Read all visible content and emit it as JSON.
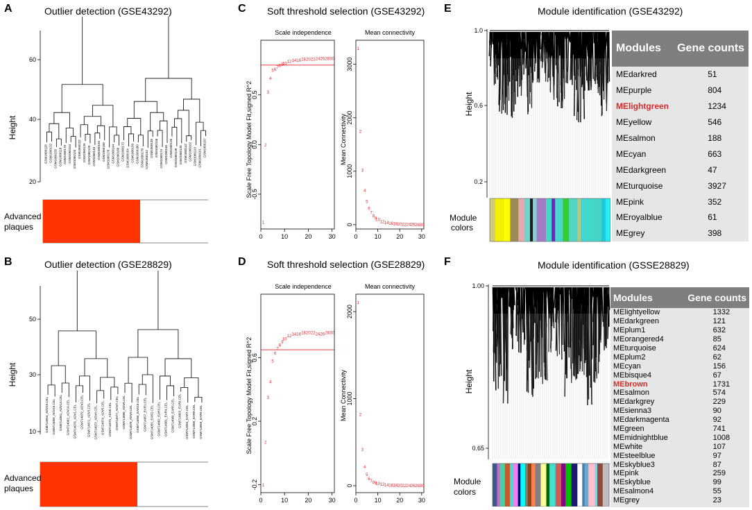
{
  "panels": {
    "A": {
      "letter": "A",
      "title": "Outlier detection (GSE43292)",
      "ylabel": "Height",
      "yticks": [
        "20",
        "40",
        "60"
      ],
      "trait_label_1": "Advanced",
      "trait_label_2": "plaques",
      "leaves": [
        "GSM1060128",
        "GSM1060132",
        "GSM1060158",
        "GSM1060118",
        "GSM1060178",
        "GSM1060154",
        "GSM1060134",
        "GSM1060122",
        "GSM1060126",
        "GSM1060120",
        "GSM1060140",
        "GSM1060156",
        "GSM1060168",
        "GSM1060176",
        "GSM1060144",
        "GSM1060160",
        "GSM1060172",
        "GSM1060164",
        "GSM1060150",
        "GSM1060180",
        "GSM1060170",
        "GSM1060152",
        "GSM1060138",
        "GSM1060146",
        "GSM1060174",
        "GSM1060166",
        "GSM1060136",
        "GSM1060148",
        "GSM1060130",
        "GSM1060142",
        "GSM1060162",
        "GSM1060119",
        "GSM1060161",
        "GSM1060167"
      ]
    },
    "B": {
      "letter": "B",
      "title": "Outlier detection (GSE28829)",
      "ylabel": "Height",
      "yticks": [
        "10",
        "30",
        "50"
      ],
      "trait_label_1": "Advanced",
      "trait_label_2": "plaques",
      "leaves": [
        "GSM714054_ADV15.CEL",
        "GSM714058_ADV16.CEL",
        "GSM714061_ADV13.CEL",
        "GSM714062_ADV14.CEL",
        "GSM714076_ADV1.CEL",
        "GSM714079_ADV2.CEL",
        "GSM714071_ADV3.CEL",
        "GSM714073_ADV4.CEL",
        "GSM714074_ADV5.CEL",
        "GSM714075_ADV6.CEL",
        "GSM714077_ADV7.CEL",
        "GSM714080_ADV8.CEL",
        "GSM714078_ADV9.CEL",
        "GSM714056_EAR10.CEL",
        "GSM714057_EAR1.CEL",
        "GSM714055_EAR2.CEL",
        "GSM714082_EAR3.CEL",
        "GSM714081_EAR4.CEL",
        "GSM714060_EAR5.CEL",
        "GSM714063_EAR6.CEL",
        "GSM714064_EAR7.CEL",
        "GSM714066_EAR8.CEL",
        "GSM714059_EAR9.CEL"
      ]
    },
    "C": {
      "letter": "C",
      "title": "Soft threshold selection (GSE43292)",
      "left_title": "Scale independence",
      "right_title": "Mean connectivity",
      "left_ylabel": "Scale Free Topology Model Fit,signed R^2",
      "right_ylabel": "Mean Connectivity",
      "left_yticks": [
        "-0.5",
        "0.0",
        "0.5"
      ],
      "right_yticks": [
        "0",
        "1000",
        "2000",
        "3000"
      ],
      "xticks": [
        "0",
        "10",
        "20",
        "30"
      ]
    },
    "D": {
      "letter": "D",
      "title": "Soft threshold selection (GSE28829)",
      "left_title": "Scale independence",
      "right_title": "Mean connectivity",
      "left_ylabel": "Scale Free Topology Model Fit,signed R^2",
      "right_ylabel": "Mean Connectivity",
      "left_yticks": [
        "-0.2",
        "0.2",
        "0.6"
      ],
      "right_yticks": [
        "0",
        "1000",
        "2000"
      ],
      "xticks": [
        "0",
        "10",
        "20",
        "30"
      ]
    },
    "E": {
      "letter": "E",
      "title": "Module identification (GSE43292)",
      "ylabel": "Height",
      "yticks": [
        "1.0",
        "0.6",
        "0.2"
      ],
      "colors_label_1": "Module",
      "colors_label_2": "colors",
      "table_headers": [
        "Modules",
        "Gene counts"
      ],
      "rows": [
        [
          "MEdarkred",
          "51"
        ],
        [
          "MEpurple",
          "804"
        ],
        [
          "MElightgreen",
          "1234"
        ],
        [
          "MEyellow",
          "546"
        ],
        [
          "MEsalmon",
          "188"
        ],
        [
          "MEcyan",
          "663"
        ],
        [
          "MEdarkgreen",
          "47"
        ],
        [
          "MEturquoise",
          "3927"
        ],
        [
          "MEpink",
          "352"
        ],
        [
          "MEroyalblue",
          "61"
        ],
        [
          "MEgrey",
          "398"
        ]
      ],
      "highlight": "MElightgreen"
    },
    "F": {
      "letter": "F",
      "title": "Module identification (GSSE28829)",
      "ylabel": "Height",
      "yticks": [
        "1.00",
        "0.65"
      ],
      "colors_label_1": "Module",
      "colors_label_2": "colors",
      "table_headers": [
        "Modules",
        "Gene counts"
      ],
      "rows": [
        [
          "MElightyellow",
          "1332"
        ],
        [
          "MEdarkgreen",
          "121"
        ],
        [
          "MEplum1",
          "632"
        ],
        [
          "MEorangered4",
          "85"
        ],
        [
          "MEturquoise",
          "624"
        ],
        [
          "MEplum2",
          "62"
        ],
        [
          "MEcyan",
          "156"
        ],
        [
          "MEbisque4",
          "67"
        ],
        [
          "MEbrown",
          "1731"
        ],
        [
          "MEsalmon",
          "574"
        ],
        [
          "MEdarkgrey",
          "229"
        ],
        [
          "MEsienna3",
          "90"
        ],
        [
          "MEdarkmagenta",
          "92"
        ],
        [
          "MEgreen",
          "741"
        ],
        [
          "MEmidnightblue",
          "1008"
        ],
        [
          "MEwhite",
          "107"
        ],
        [
          "MEsteelblue",
          "97"
        ],
        [
          "MEskyblue3",
          "87"
        ],
        [
          "MEpink",
          "259"
        ],
        [
          "MEskyblue",
          "99"
        ],
        [
          "MEsalmon4",
          "55"
        ],
        [
          "MEgrey",
          "23"
        ]
      ],
      "highlight": "MEbrown"
    }
  },
  "chart_data": [
    {
      "type": "scatter",
      "panel": "C-left",
      "title": "Scale independence",
      "xlabel": "",
      "ylabel": "Scale Free Topology Model Fit,signed R^2",
      "xlim": [
        0,
        31
      ],
      "ylim": [
        -0.85,
        1.05
      ],
      "x": [
        1,
        2,
        3,
        4,
        5,
        6,
        7,
        8,
        9,
        10,
        12,
        14,
        16,
        18,
        20,
        22,
        24,
        26,
        28,
        30
      ],
      "values": [
        -0.78,
        0.0,
        0.53,
        0.67,
        0.75,
        0.76,
        0.78,
        0.8,
        0.81,
        0.82,
        0.84,
        0.85,
        0.85,
        0.86,
        0.86,
        0.86,
        0.87,
        0.87,
        0.87,
        0.87
      ],
      "threshold": 0.8
    },
    {
      "type": "scatter",
      "panel": "C-right",
      "title": "Mean connectivity",
      "ylabel": "Mean Connectivity",
      "xlim": [
        0,
        31
      ],
      "ylim": [
        -80,
        3450
      ],
      "x": [
        1,
        2,
        3,
        4,
        5,
        6,
        7,
        8,
        9,
        10,
        12,
        14,
        16,
        18,
        20,
        22,
        24,
        26,
        28,
        30
      ],
      "values": [
        3300,
        1750,
        1020,
        650,
        440,
        310,
        230,
        170,
        130,
        100,
        65,
        45,
        32,
        24,
        18,
        14,
        11,
        9,
        7,
        6
      ]
    },
    {
      "type": "scatter",
      "panel": "D-left",
      "title": "Scale independence",
      "ylabel": "Scale Free Topology Model Fit,signed R^2",
      "xlim": [
        0,
        31
      ],
      "ylim": [
        -0.25,
        1.0
      ],
      "x": [
        1,
        2,
        3,
        4,
        5,
        6,
        7,
        8,
        9,
        10,
        12,
        14,
        16,
        18,
        20,
        22,
        24,
        26,
        28,
        30
      ],
      "values": [
        -0.2,
        0.07,
        0.35,
        0.45,
        0.58,
        0.63,
        0.66,
        0.68,
        0.7,
        0.72,
        0.74,
        0.75,
        0.75,
        0.76,
        0.76,
        0.76,
        0.75,
        0.75,
        0.76,
        0.76
      ],
      "threshold": 0.65
    },
    {
      "type": "scatter",
      "panel": "D-right",
      "title": "Mean connectivity",
      "ylabel": "Mean Connectivity",
      "xlim": [
        0,
        31
      ],
      "ylim": [
        -80,
        2200
      ],
      "x": [
        1,
        2,
        3,
        4,
        5,
        6,
        7,
        8,
        9,
        10,
        12,
        14,
        16,
        18,
        20,
        22,
        24,
        26,
        28,
        30
      ],
      "values": [
        2110,
        820,
        420,
        220,
        130,
        85,
        60,
        45,
        35,
        28,
        18,
        12,
        9,
        7,
        5,
        4,
        3,
        3,
        2,
        2
      ]
    }
  ],
  "colors": {
    "red_fill": "#ff3300",
    "marker_red": "#e8232a",
    "table_bg": "#e6e6e6",
    "table_header_bg": "#7f7f7f",
    "highlight_red": "#d72b2b",
    "module_strip_E": [
      "#d2cb7a",
      "#f4f000",
      "#ffff00",
      "#9a8a58",
      "#e8a9ae",
      "#6ad7c9",
      "#1e1e1e",
      "#8ecfd4",
      "#a37cc6",
      "#45d8c9",
      "#7a22c7",
      "#48d8ca",
      "#36cc36",
      "#52d5c4",
      "#b7c67a",
      "#41d8cf",
      "#42d8c8",
      "#45d4c8",
      "#1ecad7",
      "#22eeee"
    ],
    "module_strip_F": [
      "#3b5b8f",
      "#cd69c9",
      "#3fd5a2",
      "#c45b2f",
      "#44dcd0",
      "#ee82ee",
      "#000080",
      "#00ffff",
      "#8b7d6b",
      "#8b4513",
      "#ff7f50",
      "#7f7f7f",
      "#ffff99",
      "#006400",
      "#40e0d0",
      "#cd5c5c",
      "#8b008b",
      "#00c000",
      "#191970",
      "#ffffff",
      "#4682b4",
      "#6ca6cd",
      "#ffc0cb",
      "#87ceeb",
      "#8b4c39",
      "#bebebe"
    ]
  }
}
